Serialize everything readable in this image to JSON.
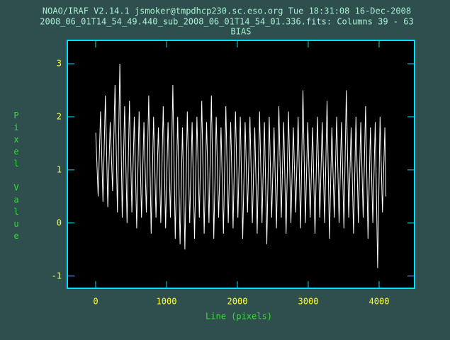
{
  "chart_data": {
    "type": "line",
    "title": "NOAO/IRAF V2.14.1 jsmoker@tmpdhcp230.sc.eso.org Tue 18:31:08 16-Dec-2008",
    "subtitle": "2008_06_01T14_54_49.440_sub_2008_06_01T14_54_01.336.fits: Columns 39 - 63",
    "plot_title": "BIAS",
    "xlabel": "Line (pixels)",
    "ylabel": "Pixel Value",
    "color": "#ffffff",
    "xlim": [
      -400,
      4500
    ],
    "xticks": [
      0,
      1000,
      2000,
      3000,
      4000
    ],
    "ylim": [
      -1.23,
      3.44
    ],
    "yticks": [
      -1,
      0,
      1,
      2,
      3
    ],
    "x": [
      1,
      35,
      69,
      103,
      137,
      171,
      205,
      239,
      273,
      307,
      341,
      375,
      409,
      443,
      477,
      511,
      545,
      579,
      613,
      647,
      681,
      715,
      749,
      783,
      817,
      851,
      885,
      919,
      953,
      987,
      1021,
      1055,
      1089,
      1123,
      1157,
      1191,
      1225,
      1259,
      1293,
      1327,
      1361,
      1395,
      1429,
      1463,
      1497,
      1531,
      1565,
      1599,
      1633,
      1667,
      1701,
      1735,
      1769,
      1803,
      1837,
      1871,
      1905,
      1939,
      1973,
      2007,
      2041,
      2075,
      2109,
      2143,
      2177,
      2211,
      2245,
      2279,
      2313,
      2347,
      2381,
      2415,
      2449,
      2483,
      2517,
      2551,
      2585,
      2619,
      2653,
      2687,
      2721,
      2755,
      2789,
      2823,
      2857,
      2891,
      2925,
      2959,
      2993,
      3027,
      3061,
      3095,
      3129,
      3163,
      3197,
      3231,
      3265,
      3299,
      3333,
      3367,
      3401,
      3435,
      3469,
      3503,
      3537,
      3571,
      3605,
      3639,
      3673,
      3707,
      3741,
      3775,
      3809,
      3843,
      3877,
      3911,
      3945,
      3979,
      4013,
      4047,
      4081,
      4096
    ],
    "values": [
      1.7,
      0.5,
      2.1,
      0.4,
      2.4,
      0.3,
      1.9,
      0.6,
      2.6,
      0.2,
      3.0,
      0.1,
      2.2,
      0.0,
      2.3,
      0.2,
      2.0,
      -0.1,
      2.1,
      0.1,
      1.9,
      0.2,
      2.4,
      -0.2,
      2.0,
      0.1,
      1.8,
      0.0,
      2.2,
      -0.1,
      1.9,
      0.1,
      2.6,
      -0.3,
      2.0,
      -0.4,
      1.8,
      -0.5,
      2.1,
      0.0,
      1.9,
      -0.3,
      2.0,
      0.1,
      2.3,
      -0.2,
      1.9,
      0.0,
      2.4,
      -0.3,
      2.0,
      0.1,
      1.8,
      -0.2,
      2.2,
      0.0,
      1.9,
      -0.1,
      2.1,
      0.1,
      2.0,
      -0.3,
      1.9,
      0.2,
      2.0,
      0.0,
      1.8,
      -0.2,
      2.1,
      0.0,
      1.9,
      -0.4,
      2.0,
      0.1,
      1.8,
      -0.1,
      2.2,
      0.1,
      1.9,
      -0.2,
      2.1,
      0.0,
      1.8,
      0.2,
      2.0,
      -0.1,
      2.5,
      0.0,
      1.9,
      0.1,
      1.8,
      -0.2,
      2.0,
      0.1,
      1.9,
      0.0,
      2.3,
      -0.3,
      1.8,
      0.1,
      2.0,
      0.0,
      1.9,
      -0.1,
      2.5,
      0.1,
      1.8,
      -0.2,
      2.0,
      0.0,
      1.9,
      0.1,
      2.2,
      -0.3,
      1.8,
      0.0,
      1.9,
      -0.85,
      2.0,
      0.2,
      1.8,
      0.5
    ]
  }
}
